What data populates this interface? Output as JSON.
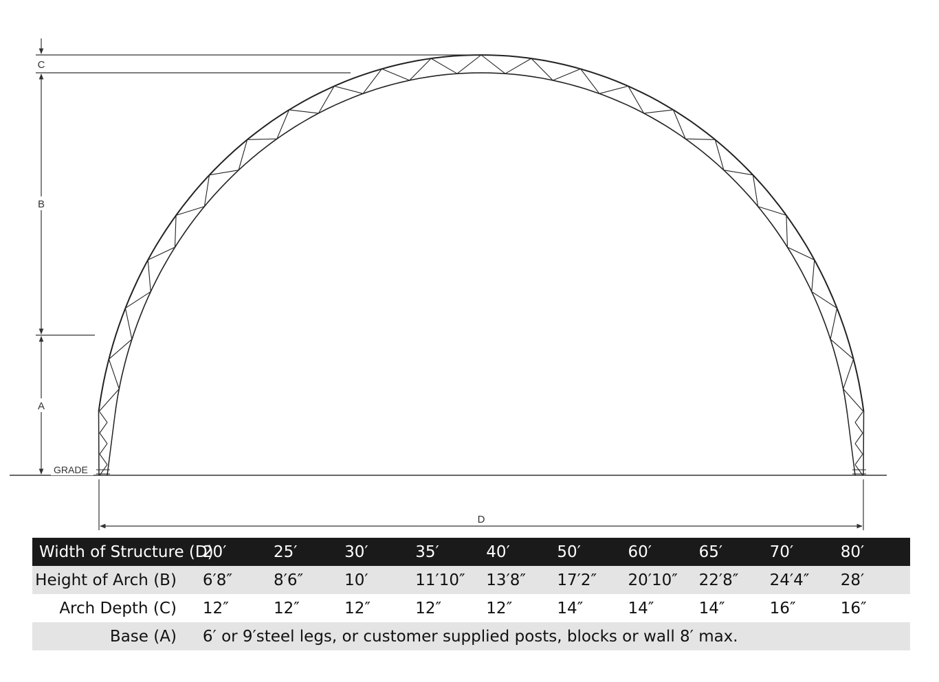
{
  "dimension_labels": {
    "c": "C",
    "b": "B",
    "a": "A",
    "d": "D",
    "grade": "GRADE"
  },
  "table": {
    "rows": [
      {
        "label": "Width of Structure (D)",
        "values": [
          "20′",
          "25′",
          "30′",
          "35′",
          "40′",
          "50′",
          "60′",
          "65′",
          "70′",
          "80′"
        ]
      },
      {
        "label": "Height of Arch (B)",
        "values": [
          "6′8″",
          "8′6″",
          "10′",
          "11′10″",
          "13′8″",
          "17′2″",
          "20′10″",
          "22′8″",
          "24′4″",
          "28′"
        ]
      },
      {
        "label": "Arch Depth (C)",
        "values": [
          "12″",
          "12″",
          "12″",
          "12″",
          "12″",
          "14″",
          "14″",
          "14″",
          "16″",
          "16″"
        ]
      }
    ],
    "base_row": {
      "label": "Base (A)",
      "text": "6′ or 9′steel legs, or customer supplied posts, blocks or wall 8′ max."
    }
  }
}
